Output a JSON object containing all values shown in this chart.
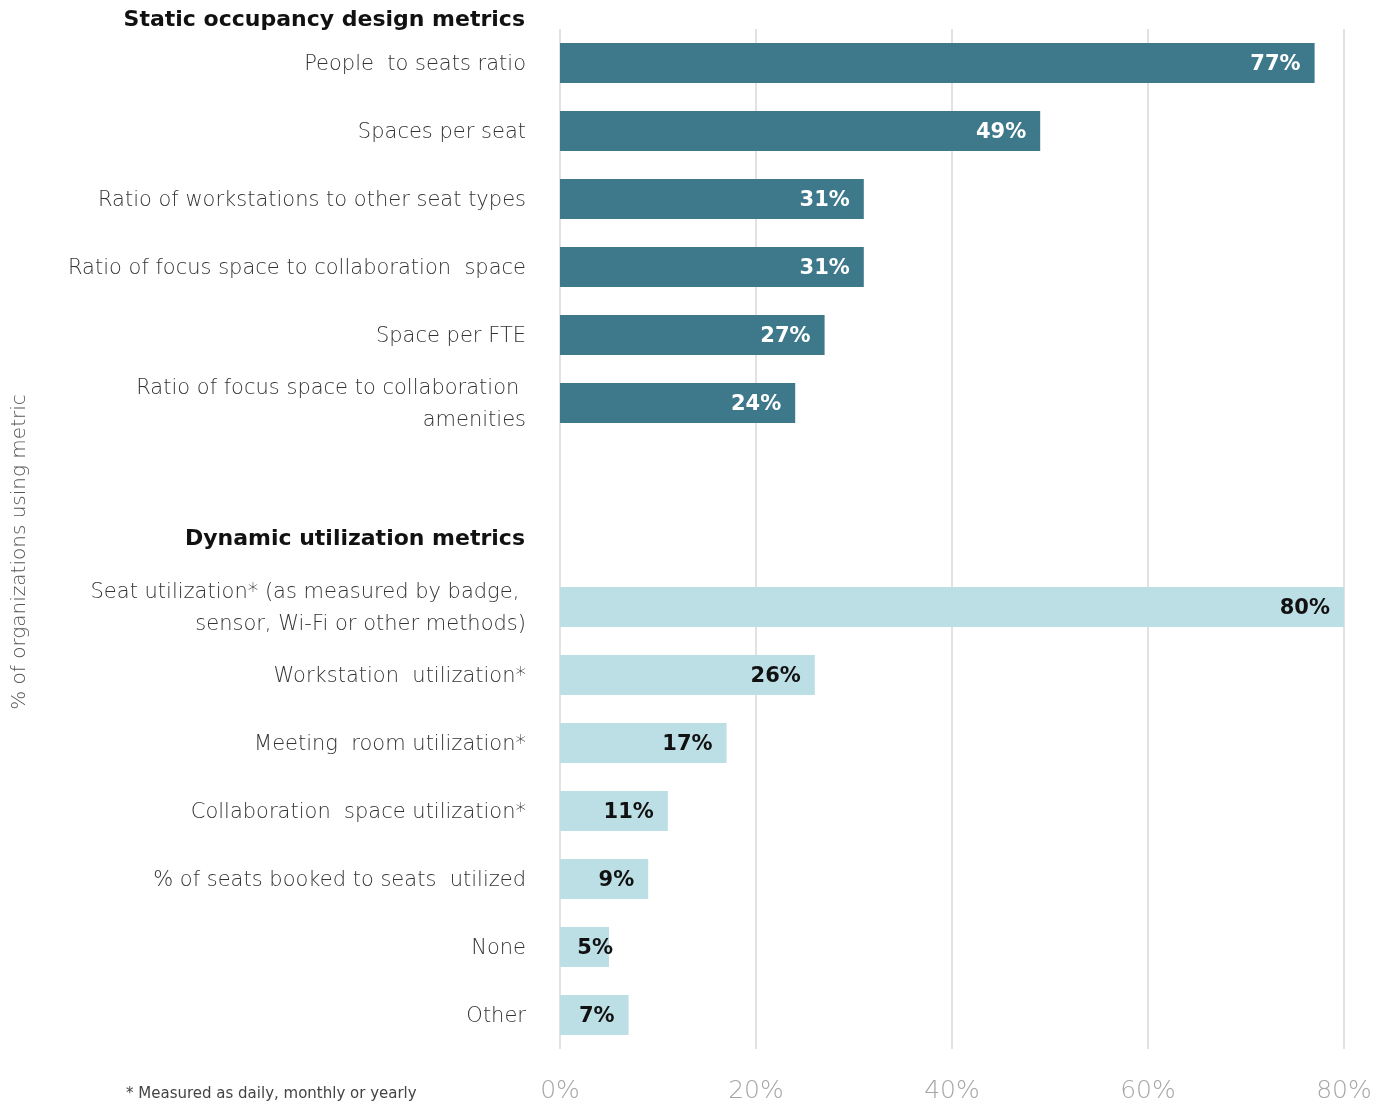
{
  "chart_data": {
    "type": "bar",
    "orientation": "horizontal",
    "ylabel": "% of organizations using metric",
    "annotations": [
      "Static occupancy design metrics",
      "Dynamic utilization metrics",
      "* Measured as daily, monthly or yearly"
    ],
    "categories": [
      "People  to seats ratio",
      "Spaces per seat",
      "Ratio of workstations to other seat types",
      "Ratio of focus space to collaboration  space",
      "Space per FTE",
      "Ratio of focus space to collaboration amenities",
      null,
      null,
      "Seat utilization* (as measured by badge, sensor, Wi-Fi or other methods)",
      "Workstation  utilization*",
      "Meeting  room utilization*",
      "Collaboration  space utilization*",
      "% of seats booked to seats  utilized",
      "None",
      "Other"
    ],
    "values": [
      77,
      49,
      31,
      31,
      27,
      24,
      null,
      null,
      80,
      26,
      17,
      11,
      9,
      5,
      7
    ],
    "colors": [
      "#3e788b",
      "#3e788b",
      "#3e788b",
      "#3e788b",
      "#3e788b",
      "#3e788b",
      null,
      null,
      "#bcdfe6",
      "#bcdfe6",
      "#bcdfe6",
      "#bcdfe6",
      "#bcdfe6",
      "#bcdfe6",
      "#bcdfe6"
    ],
    "value_labels": [
      "77%",
      "49%",
      "31%",
      "31%",
      "27%",
      "24%",
      null,
      null,
      "80%",
      "26%",
      "17%",
      "11%",
      "9%",
      "5%",
      "7%"
    ],
    "xlim": [
      0,
      80
    ],
    "xticks": [
      {
        "value": 0,
        "label": "0%"
      },
      {
        "value": 20,
        "label": "20%"
      },
      {
        "value": 40,
        "label": "40%"
      },
      {
        "value": 60,
        "label": "60%"
      },
      {
        "value": 80,
        "label": "80%"
      }
    ],
    "grid": "x"
  }
}
